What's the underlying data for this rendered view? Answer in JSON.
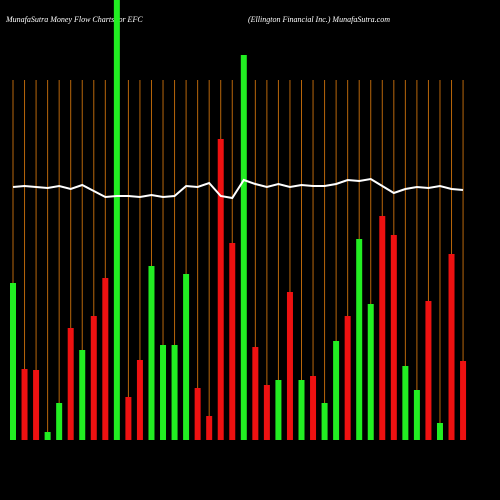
{
  "chart_data": {
    "type": "bar",
    "title": "MunafaSutra  Money Flow  Charts for EFC",
    "subtitle": "(Ellington  Financial Inc.) MunafaSutra.com",
    "categories": [
      null,
      null,
      null,
      null,
      null,
      null,
      null,
      null,
      null,
      null,
      null,
      null,
      null,
      null,
      null,
      null,
      null,
      null,
      null,
      null,
      null,
      null,
      null,
      null,
      null,
      null,
      null,
      null,
      null,
      null,
      null,
      null,
      null,
      null,
      null,
      null,
      null,
      null,
      null,
      null
    ],
    "values": [
      157,
      71,
      70,
      8,
      37,
      112,
      90,
      124,
      162,
      440,
      43,
      80,
      174,
      95,
      95,
      166,
      52,
      24,
      301,
      197,
      385,
      93,
      55,
      60,
      148,
      60,
      64,
      37,
      99,
      124,
      201,
      136,
      224,
      205,
      74,
      50,
      139,
      17,
      186,
      79
    ],
    "colors": [
      "#22ee22",
      "#ee1111",
      "#ee1111",
      "#22ee22",
      "#22ee22",
      "#ee1111",
      "#22ee22",
      "#ee1111",
      "#ee1111",
      "#22ee22",
      "#ee1111",
      "#ee1111",
      "#22ee22",
      "#22ee22",
      "#22ee22",
      "#22ee22",
      "#ee1111",
      "#ee1111",
      "#ee1111",
      "#ee1111",
      "#22ee22",
      "#ee1111",
      "#ee1111",
      "#22ee22",
      "#ee1111",
      "#22ee22",
      "#ee1111",
      "#22ee22",
      "#22ee22",
      "#ee1111",
      "#22ee22",
      "#22ee22",
      "#ee1111",
      "#ee1111",
      "#22ee22",
      "#22ee22",
      "#ee1111",
      "#22ee22",
      "#ee1111",
      "#ee1111"
    ],
    "line": {
      "color": "#ffffff",
      "values": [
        253,
        254,
        253,
        252,
        254,
        251,
        255,
        249,
        243,
        244,
        244,
        243,
        245,
        243,
        244,
        254,
        253,
        257,
        244,
        242,
        260,
        256,
        253,
        256,
        253,
        255,
        254,
        254,
        256,
        260,
        259,
        261,
        254,
        247,
        251,
        253,
        252,
        254,
        251,
        250
      ]
    },
    "ylim": [
      0,
      440
    ],
    "grid": true,
    "grid_color": "#b8660b"
  }
}
